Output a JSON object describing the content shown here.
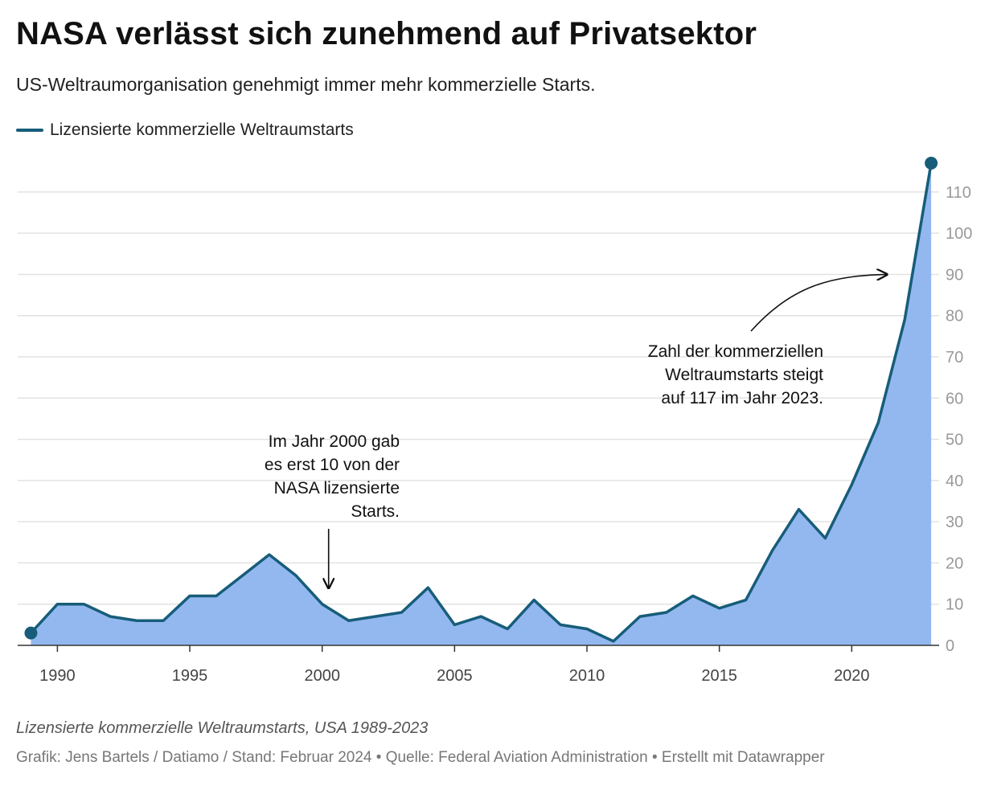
{
  "header": {
    "title": "NASA verlässt sich zunehmend auf Privatsektor",
    "subtitle": "US-Weltraumorganisation genehmigt immer mehr kommerzielle Starts."
  },
  "colors": {
    "line": "#175d79",
    "area": "#93b8f0",
    "grid": "#e2e2e2",
    "axis": "#333333",
    "tick": "#999999"
  },
  "chart_data": {
    "type": "area",
    "series": [
      {
        "name": "Lizensierte kommerzielle Weltraumstarts",
        "x": [
          1989,
          1990,
          1991,
          1992,
          1993,
          1994,
          1995,
          1996,
          1997,
          1998,
          1999,
          2000,
          2001,
          2002,
          2003,
          2004,
          2005,
          2006,
          2007,
          2008,
          2009,
          2010,
          2011,
          2012,
          2013,
          2014,
          2015,
          2016,
          2017,
          2018,
          2019,
          2020,
          2021,
          2022,
          2023
        ],
        "values": [
          3,
          10,
          10,
          7,
          6,
          6,
          12,
          12,
          17,
          22,
          17,
          10,
          6,
          7,
          8,
          14,
          5,
          7,
          4,
          11,
          5,
          4,
          1,
          7,
          8,
          12,
          9,
          11,
          23,
          33,
          26,
          39,
          54,
          79,
          117
        ]
      }
    ],
    "xlim": [
      1988.5,
      2023.3
    ],
    "ylim": [
      0,
      117
    ],
    "y_ticks": [
      0,
      10,
      20,
      30,
      40,
      50,
      60,
      70,
      80,
      90,
      100,
      110
    ],
    "x_ticks": [
      1990,
      1995,
      2000,
      2005,
      2010,
      2015,
      2020
    ],
    "y_axis_position": "right",
    "grid": true,
    "legend_position": "top-left",
    "annotations": [
      {
        "lines": [
          "Im Jahr 2000 gab",
          "es erst 10 von der",
          "NASA lizensierte",
          "Starts."
        ],
        "year": 2000,
        "value": 10
      },
      {
        "lines": [
          "Zahl der kommerziellen",
          "Weltraumstarts steigt",
          "auf 117 im Jahr 2023."
        ],
        "year": 2022,
        "value": 90
      }
    ]
  },
  "notes": "Lizensierte kommerzielle Weltraumstarts, USA 1989-2023",
  "footer": "Grafik: Jens Bartels / Datiamo / Stand: Februar 2024 • Quelle: Federal Aviation Administration • Erstellt mit Datawrapper"
}
